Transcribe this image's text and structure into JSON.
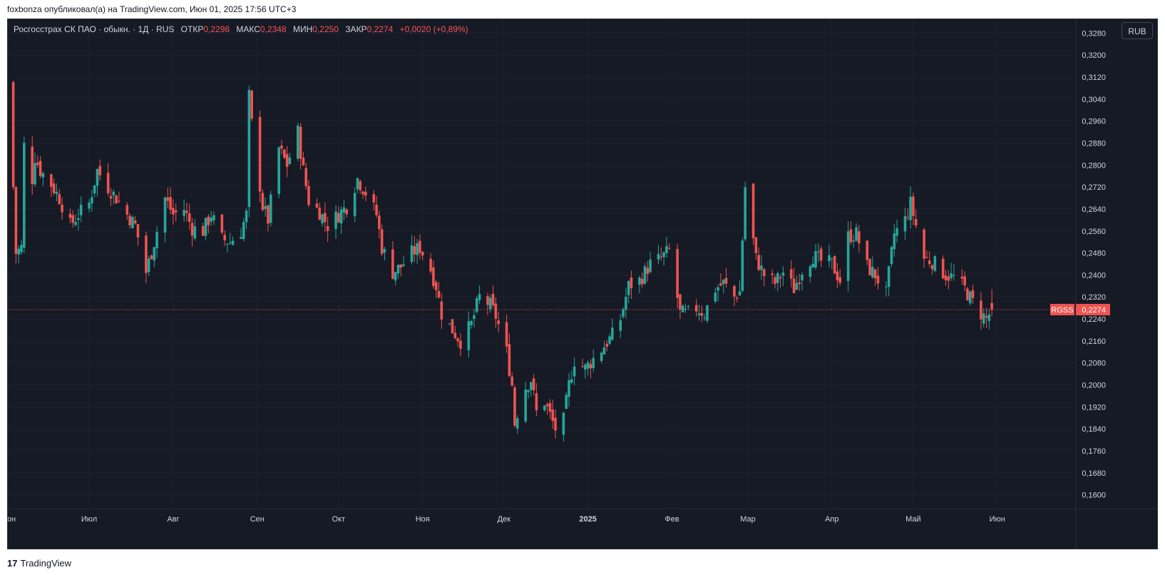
{
  "header": {
    "published_by": "foxbonza опубликовал(а) на TradingView.com, Июн 01, 2025 17:56 UTC+3"
  },
  "legend": {
    "symbol_desc": "Росгосстрах СК ПАО · обыкн. · 1Д · RUS",
    "open_label": "ОТКР",
    "open_value": "0,2298",
    "high_label": "МАКС",
    "high_value": "0,2348",
    "low_label": "МИН",
    "low_value": "0,2250",
    "close_label": "ЗАКР",
    "close_value": "0,2274",
    "change": "+0,0020 (+0,89%)"
  },
  "currency_button": "RUB",
  "price_tag": {
    "ticker": "RGSS",
    "value": "0,2274"
  },
  "footer": {
    "logo": "17",
    "brand": "TradingView"
  },
  "colors": {
    "up": "#26a69a",
    "down": "#ef5350",
    "bg": "#161a25",
    "grid": "#1f2330",
    "axis_text": "#d1d4dc"
  },
  "chart_data": {
    "type": "candlestick",
    "symbol": "RGSS",
    "interval": "1Д",
    "currency": "RUB",
    "y_ticks": [
      "0,1600",
      "0,1680",
      "0,1760",
      "0,1840",
      "0,1920",
      "0,2000",
      "0,2080",
      "0,2160",
      "0,2240",
      "0,2320",
      "0,2400",
      "0,2480",
      "0,2560",
      "0,2640",
      "0,2720",
      "0,2800",
      "0,2880",
      "0,2960",
      "0,3040",
      "0,3120",
      "0,3200",
      "0,3280"
    ],
    "ylim": [
      0.155,
      0.333
    ],
    "x_labels": [
      {
        "label": "Июн",
        "date": "2024-06-01"
      },
      {
        "label": "Июл",
        "date": "2024-07-01"
      },
      {
        "label": "Авг",
        "date": "2024-08-01"
      },
      {
        "label": "Сен",
        "date": "2024-09-01"
      },
      {
        "label": "Окт",
        "date": "2024-10-01"
      },
      {
        "label": "Ноя",
        "date": "2024-11-01"
      },
      {
        "label": "Дек",
        "date": "2024-12-01"
      },
      {
        "label": "2025",
        "date": "2025-01-01",
        "bold": true
      },
      {
        "label": "Фев",
        "date": "2025-02-01"
      },
      {
        "label": "Мар",
        "date": "2025-03-01"
      },
      {
        "label": "Апр",
        "date": "2025-04-01"
      },
      {
        "label": "Май",
        "date": "2025-05-01"
      },
      {
        "label": "Июн",
        "date": "2025-06-01"
      }
    ],
    "x_range": [
      "2024-06-01",
      "2025-06-30"
    ],
    "last_price": 0.2274,
    "close_path": [
      [
        "2024-06-01",
        0.29
      ],
      [
        "2024-06-03",
        0.272
      ],
      [
        "2024-06-04",
        0.248
      ],
      [
        "2024-06-06",
        0.25
      ],
      [
        "2024-06-07",
        0.287
      ],
      [
        "2024-06-10",
        0.275
      ],
      [
        "2024-06-11",
        0.283
      ],
      [
        "2024-06-13",
        0.278
      ],
      [
        "2024-06-17",
        0.273
      ],
      [
        "2024-06-20",
        0.268
      ],
      [
        "2024-06-24",
        0.258
      ],
      [
        "2024-06-27",
        0.262
      ],
      [
        "2024-07-01",
        0.266
      ],
      [
        "2024-07-04",
        0.278
      ],
      [
        "2024-07-08",
        0.272
      ],
      [
        "2024-07-11",
        0.268
      ],
      [
        "2024-07-15",
        0.262
      ],
      [
        "2024-07-18",
        0.258
      ],
      [
        "2024-07-22",
        0.241
      ],
      [
        "2024-07-25",
        0.252
      ],
      [
        "2024-07-29",
        0.268
      ],
      [
        "2024-08-01",
        0.262
      ],
      [
        "2024-08-05",
        0.264
      ],
      [
        "2024-08-08",
        0.257
      ],
      [
        "2024-08-12",
        0.256
      ],
      [
        "2024-08-15",
        0.262
      ],
      [
        "2024-08-19",
        0.253
      ],
      [
        "2024-08-22",
        0.252
      ],
      [
        "2024-08-26",
        0.256
      ],
      [
        "2024-08-28",
        0.262
      ],
      [
        "2024-08-29",
        0.305
      ],
      [
        "2024-08-30",
        0.295
      ],
      [
        "2024-09-03",
        0.265
      ],
      [
        "2024-09-05",
        0.26
      ],
      [
        "2024-09-09",
        0.286
      ],
      [
        "2024-09-12",
        0.28
      ],
      [
        "2024-09-16",
        0.292
      ],
      [
        "2024-09-18",
        0.278
      ],
      [
        "2024-09-20",
        0.267
      ],
      [
        "2024-09-24",
        0.263
      ],
      [
        "2024-09-27",
        0.258
      ],
      [
        "2024-10-01",
        0.262
      ],
      [
        "2024-10-04",
        0.265
      ],
      [
        "2024-10-08",
        0.275
      ],
      [
        "2024-10-11",
        0.27
      ],
      [
        "2024-10-15",
        0.262
      ],
      [
        "2024-10-17",
        0.25
      ],
      [
        "2024-10-21",
        0.241
      ],
      [
        "2024-10-24",
        0.243
      ],
      [
        "2024-10-28",
        0.248
      ],
      [
        "2024-10-31",
        0.25
      ],
      [
        "2024-11-04",
        0.242
      ],
      [
        "2024-11-06",
        0.236
      ],
      [
        "2024-11-08",
        0.226
      ],
      [
        "2024-11-12",
        0.22
      ],
      [
        "2024-11-15",
        0.216
      ],
      [
        "2024-11-19",
        0.222
      ],
      [
        "2024-11-22",
        0.232
      ],
      [
        "2024-11-26",
        0.229
      ],
      [
        "2024-11-28",
        0.225
      ],
      [
        "2024-12-02",
        0.212
      ],
      [
        "2024-12-04",
        0.2
      ],
      [
        "2024-12-05",
        0.186
      ],
      [
        "2024-12-08",
        0.198
      ],
      [
        "2024-12-11",
        0.202
      ],
      [
        "2024-12-13",
        0.19
      ],
      [
        "2024-12-16",
        0.194
      ],
      [
        "2024-12-18",
        0.189
      ],
      [
        "2024-12-20",
        0.184
      ],
      [
        "2024-12-23",
        0.187
      ],
      [
        "2024-12-25",
        0.2
      ],
      [
        "2024-12-27",
        0.209
      ],
      [
        "2024-12-31",
        0.206
      ],
      [
        "2025-01-06",
        0.213
      ],
      [
        "2025-01-10",
        0.218
      ],
      [
        "2025-01-13",
        0.224
      ],
      [
        "2025-01-16",
        0.236
      ],
      [
        "2025-01-20",
        0.238
      ],
      [
        "2025-01-24",
        0.244
      ],
      [
        "2025-01-28",
        0.246
      ],
      [
        "2025-01-31",
        0.249
      ],
      [
        "2025-02-04",
        0.226
      ],
      [
        "2025-02-07",
        0.226
      ],
      [
        "2025-02-10",
        0.228
      ],
      [
        "2025-02-13",
        0.226
      ],
      [
        "2025-02-17",
        0.235
      ],
      [
        "2025-02-20",
        0.237
      ],
      [
        "2025-02-24",
        0.232
      ],
      [
        "2025-02-26",
        0.234
      ],
      [
        "2025-02-28",
        0.272
      ],
      [
        "2025-03-04",
        0.246
      ],
      [
        "2025-03-07",
        0.24
      ],
      [
        "2025-03-11",
        0.237
      ],
      [
        "2025-03-14",
        0.241
      ],
      [
        "2025-03-18",
        0.235
      ],
      [
        "2025-03-21",
        0.242
      ],
      [
        "2025-03-25",
        0.247
      ],
      [
        "2025-03-28",
        0.245
      ],
      [
        "2025-04-01",
        0.244
      ],
      [
        "2025-04-04",
        0.238
      ],
      [
        "2025-04-07",
        0.254
      ],
      [
        "2025-04-10",
        0.255
      ],
      [
        "2025-04-14",
        0.243
      ],
      [
        "2025-04-17",
        0.24
      ],
      [
        "2025-04-21",
        0.233
      ],
      [
        "2025-04-24",
        0.255
      ],
      [
        "2025-04-28",
        0.26
      ],
      [
        "2025-04-30",
        0.266
      ],
      [
        "2025-05-05",
        0.246
      ],
      [
        "2025-05-08",
        0.245
      ],
      [
        "2025-05-13",
        0.24
      ],
      [
        "2025-05-16",
        0.239
      ],
      [
        "2025-05-20",
        0.235
      ],
      [
        "2025-05-23",
        0.23
      ],
      [
        "2025-05-26",
        0.226
      ],
      [
        "2025-05-28",
        0.224
      ],
      [
        "2025-05-30",
        0.2274
      ]
    ]
  }
}
